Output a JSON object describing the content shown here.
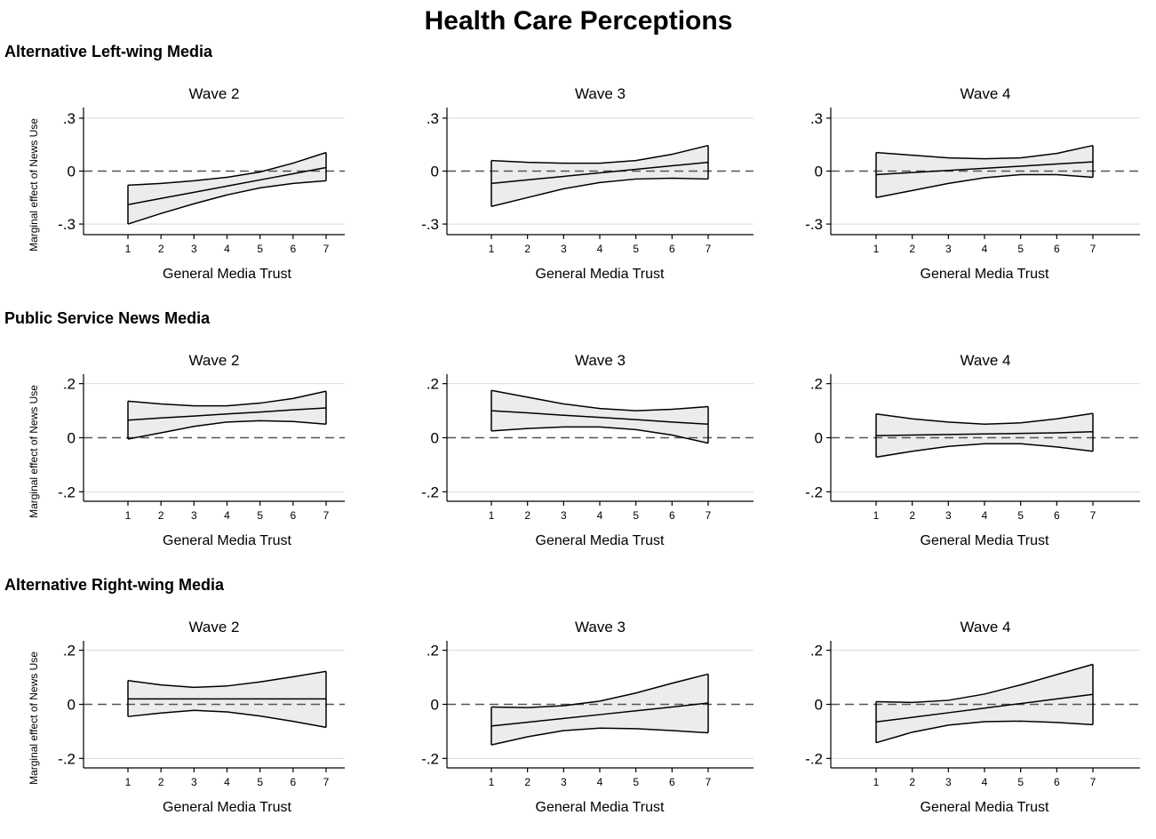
{
  "title": "Health Care Perceptions",
  "y_axis_label": "Marginal effect of News Use",
  "x_axis_label": "General Media Trust",
  "colors": {
    "band_fill": "#ececec",
    "line": "#000000",
    "grid": "#dcdcdc",
    "zero_line": "#555555"
  },
  "chart_data": [
    {
      "type": "line",
      "title": "Alternative Left-wing Media",
      "ylim": [
        -0.36,
        0.36
      ],
      "yticks": [
        0.3,
        0,
        -0.3
      ],
      "ytick_labels": [
        ".3",
        "0",
        "-.3"
      ],
      "x": [
        1,
        2,
        3,
        4,
        5,
        6,
        7
      ],
      "xtick_labels": [
        "1",
        "2",
        "3",
        "4",
        "5",
        "6",
        "7"
      ],
      "panels": [
        {
          "title": "Wave 2",
          "estimate": [
            -0.19,
            -0.155,
            -0.12,
            -0.085,
            -0.05,
            -0.015,
            0.02
          ],
          "upper": [
            -0.08,
            -0.07,
            -0.055,
            -0.035,
            -0.005,
            0.045,
            0.105
          ],
          "lower": [
            -0.3,
            -0.24,
            -0.185,
            -0.135,
            -0.095,
            -0.07,
            -0.055
          ]
        },
        {
          "title": "Wave 3",
          "estimate": [
            -0.07,
            -0.05,
            -0.03,
            -0.01,
            0.01,
            0.03,
            0.05
          ],
          "upper": [
            0.06,
            0.05,
            0.045,
            0.045,
            0.06,
            0.095,
            0.145
          ],
          "lower": [
            -0.2,
            -0.15,
            -0.1,
            -0.065,
            -0.045,
            -0.04,
            -0.045
          ]
        },
        {
          "title": "Wave 4",
          "estimate": [
            -0.02,
            -0.008,
            0.004,
            0.016,
            0.028,
            0.04,
            0.052
          ],
          "upper": [
            0.105,
            0.09,
            0.075,
            0.07,
            0.075,
            0.1,
            0.145
          ],
          "lower": [
            -0.15,
            -0.11,
            -0.07,
            -0.038,
            -0.02,
            -0.02,
            -0.035
          ]
        }
      ]
    },
    {
      "type": "line",
      "title": "Public Service News Media",
      "ylim": [
        -0.235,
        0.235
      ],
      "yticks": [
        0.2,
        0,
        -0.2
      ],
      "ytick_labels": [
        ".2",
        "0",
        "-.2"
      ],
      "x": [
        1,
        2,
        3,
        4,
        5,
        6,
        7
      ],
      "xtick_labels": [
        "1",
        "2",
        "3",
        "4",
        "5",
        "6",
        "7"
      ],
      "panels": [
        {
          "title": "Wave 2",
          "estimate": [
            0.065,
            0.073,
            0.08,
            0.088,
            0.095,
            0.103,
            0.11
          ],
          "upper": [
            0.135,
            0.125,
            0.118,
            0.118,
            0.128,
            0.145,
            0.172
          ],
          "lower": [
            -0.005,
            0.018,
            0.042,
            0.058,
            0.063,
            0.06,
            0.05
          ]
        },
        {
          "title": "Wave 3",
          "estimate": [
            0.1,
            0.092,
            0.083,
            0.075,
            0.067,
            0.058,
            0.05
          ],
          "upper": [
            0.175,
            0.15,
            0.125,
            0.108,
            0.1,
            0.105,
            0.115
          ],
          "lower": [
            0.025,
            0.034,
            0.04,
            0.04,
            0.03,
            0.01,
            -0.02
          ]
        },
        {
          "title": "Wave 4",
          "estimate": [
            0.008,
            0.01,
            0.012,
            0.014,
            0.016,
            0.018,
            0.022
          ],
          "upper": [
            0.088,
            0.07,
            0.058,
            0.05,
            0.055,
            0.07,
            0.09
          ],
          "lower": [
            -0.072,
            -0.05,
            -0.032,
            -0.022,
            -0.022,
            -0.034,
            -0.05
          ]
        }
      ]
    },
    {
      "type": "line",
      "title": "Alternative Right-wing Media",
      "ylim": [
        -0.235,
        0.235
      ],
      "yticks": [
        0.2,
        0,
        -0.2
      ],
      "ytick_labels": [
        ".2",
        "0",
        "-.2"
      ],
      "x": [
        1,
        2,
        3,
        4,
        5,
        6,
        7
      ],
      "xtick_labels": [
        "1",
        "2",
        "3",
        "4",
        "5",
        "6",
        "7"
      ],
      "panels": [
        {
          "title": "Wave 2",
          "estimate": [
            0.02,
            0.02,
            0.02,
            0.02,
            0.02,
            0.02,
            0.02
          ],
          "upper": [
            0.088,
            0.072,
            0.063,
            0.068,
            0.083,
            0.102,
            0.122
          ],
          "lower": [
            -0.045,
            -0.032,
            -0.022,
            -0.028,
            -0.043,
            -0.063,
            -0.085
          ]
        },
        {
          "title": "Wave 3",
          "estimate": [
            -0.08,
            -0.066,
            -0.052,
            -0.038,
            -0.024,
            -0.01,
            0.005
          ],
          "upper": [
            -0.01,
            -0.012,
            -0.005,
            0.012,
            0.042,
            0.078,
            0.112
          ],
          "lower": [
            -0.15,
            -0.12,
            -0.097,
            -0.088,
            -0.09,
            -0.097,
            -0.105
          ]
        },
        {
          "title": "Wave 4",
          "estimate": [
            -0.065,
            -0.048,
            -0.031,
            -0.014,
            0.003,
            0.02,
            0.037
          ],
          "upper": [
            0.01,
            0.007,
            0.015,
            0.038,
            0.072,
            0.11,
            0.148
          ],
          "lower": [
            -0.142,
            -0.103,
            -0.077,
            -0.064,
            -0.062,
            -0.067,
            -0.075
          ]
        }
      ]
    }
  ]
}
